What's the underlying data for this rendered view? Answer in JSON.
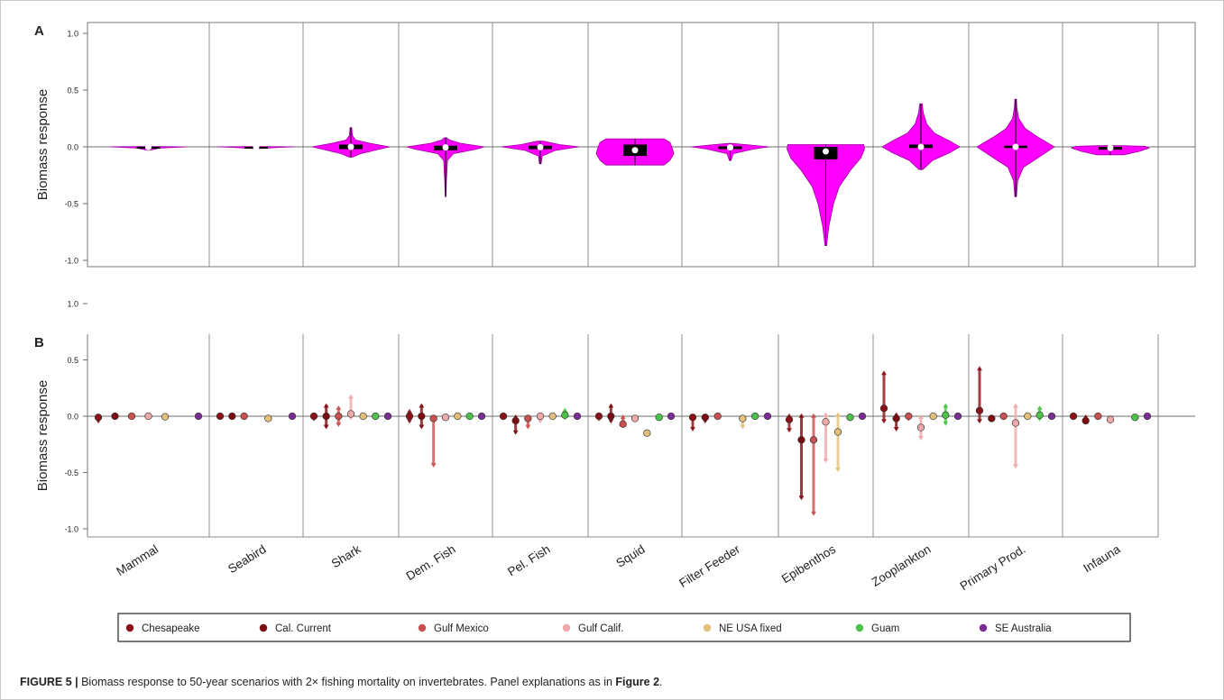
{
  "caption": {
    "label": "FIGURE 5 |",
    "text": " Biomass response to 50-year scenarios with 2× fishing mortality on invertebrates. Panel explanations as in ",
    "ref": "Figure 2",
    "end": "."
  },
  "colors": {
    "violin": "#ff00ff",
    "violin_edge": "#a100a1",
    "box": "#000000",
    "median": "#ffffff",
    "Chesapeake": "#8b1116",
    "Cal. Current": "#7a0b10",
    "Gulf Mexico": "#c8504e",
    "Gulf Calif.": "#f0a9a9",
    "NE USA fixed": "#e2c07a",
    "Guam": "#4cc24a",
    "SE Australia": "#7b2b96"
  },
  "chart_data": [
    {
      "type": "violin",
      "panel_label": "A",
      "title": "",
      "xlabel": "",
      "ylabel": "Biomass response",
      "ylim": [
        -1.05,
        1.05
      ],
      "yticks": [
        "1.0",
        "0.5",
        "0.0",
        "-0.5",
        "-1.0"
      ],
      "ytick_values": [
        1.0,
        0.5,
        0.0,
        -0.5,
        -1.0
      ],
      "grid": "vertical separators between groups; horizontal line at 0",
      "categories": [
        "Mammal",
        "Seabird",
        "Shark",
        "Dem. Fish",
        "Pel. Fish",
        "Squid",
        "Filter Feeder",
        "Epibenthos",
        "Zooplankton",
        "Primary Prod.",
        "Infauna"
      ],
      "violins": [
        {
          "min": -0.03,
          "max": 0.0,
          "q1": -0.005,
          "q3": 0.0,
          "median": -0.003,
          "mean": -0.003,
          "shape": [
            [
              -0.03,
              0.02
            ],
            [
              -0.01,
              0.3
            ],
            [
              0,
              1
            ],
            [
              0.003,
              0.3
            ]
          ]
        },
        {
          "min": -0.015,
          "max": 0.0,
          "q1": -0.004,
          "q3": 0.0,
          "median": -0.002,
          "mean": -0.002,
          "shape": [
            [
              -0.015,
              0.1
            ],
            [
              -0.005,
              0.6
            ],
            [
              0,
              1
            ],
            [
              0.002,
              0.3
            ]
          ]
        },
        {
          "min": -0.09,
          "max": 0.17,
          "q1": -0.02,
          "q3": 0.02,
          "median": 0.0,
          "mean": 0.0,
          "shape": [
            [
              -0.09,
              0.05
            ],
            [
              -0.06,
              0.25
            ],
            [
              -0.02,
              0.75
            ],
            [
              0,
              1
            ],
            [
              0.03,
              0.5
            ],
            [
              0.06,
              0.12
            ],
            [
              0.1,
              0.04
            ],
            [
              0.17,
              0.02
            ]
          ]
        },
        {
          "min": -0.44,
          "max": 0.08,
          "q1": -0.03,
          "q3": 0.01,
          "median": -0.005,
          "mean": -0.005,
          "shape": [
            [
              -0.44,
              0.01
            ],
            [
              -0.3,
              0.02
            ],
            [
              -0.12,
              0.05
            ],
            [
              -0.06,
              0.2
            ],
            [
              -0.02,
              0.8
            ],
            [
              0,
              1
            ],
            [
              0.03,
              0.4
            ],
            [
              0.06,
              0.1
            ],
            [
              0.08,
              0.03
            ]
          ]
        },
        {
          "min": -0.15,
          "max": 0.05,
          "q1": -0.02,
          "q3": 0.01,
          "median": -0.003,
          "mean": -0.003,
          "shape": [
            [
              -0.15,
              0.02
            ],
            [
              -0.08,
              0.05
            ],
            [
              -0.03,
              0.4
            ],
            [
              0,
              1
            ],
            [
              0.02,
              0.5
            ],
            [
              0.05,
              0.08
            ]
          ]
        },
        {
          "min": -0.16,
          "max": 0.07,
          "q1": -0.08,
          "q3": 0.02,
          "median": -0.03,
          "mean": -0.02,
          "shape": [
            [
              -0.16,
              0.75
            ],
            [
              -0.12,
              0.9
            ],
            [
              -0.06,
              1
            ],
            [
              0,
              0.95
            ],
            [
              0.04,
              0.9
            ],
            [
              0.07,
              0.75
            ]
          ]
        },
        {
          "min": -0.12,
          "max": 0.03,
          "q1": -0.02,
          "q3": 0.005,
          "median": -0.005,
          "mean": -0.005,
          "shape": [
            [
              -0.12,
              0.02
            ],
            [
              -0.06,
              0.08
            ],
            [
              -0.02,
              0.6
            ],
            [
              0,
              1
            ],
            [
              0.02,
              0.4
            ],
            [
              0.03,
              0.05
            ]
          ]
        },
        {
          "min": -0.87,
          "max": 0.02,
          "q1": -0.11,
          "q3": 0.0,
          "median": -0.04,
          "mean": -0.03,
          "shape": [
            [
              -0.87,
              0.02
            ],
            [
              -0.7,
              0.08
            ],
            [
              -0.5,
              0.2
            ],
            [
              -0.35,
              0.35
            ],
            [
              -0.2,
              0.65
            ],
            [
              -0.1,
              0.9
            ],
            [
              -0.02,
              1
            ],
            [
              0.02,
              0.98
            ]
          ]
        },
        {
          "min": -0.2,
          "max": 0.38,
          "q1": -0.01,
          "q3": 0.02,
          "median": 0.0,
          "mean": 0.0,
          "shape": [
            [
              -0.2,
              0.05
            ],
            [
              -0.12,
              0.3
            ],
            [
              -0.05,
              0.75
            ],
            [
              0,
              1
            ],
            [
              0.05,
              0.75
            ],
            [
              0.12,
              0.35
            ],
            [
              0.2,
              0.15
            ],
            [
              0.3,
              0.06
            ],
            [
              0.38,
              0.03
            ]
          ]
        },
        {
          "min": -0.44,
          "max": 0.42,
          "q1": -0.01,
          "q3": 0.01,
          "median": 0.0,
          "mean": 0.0,
          "shape": [
            [
              -0.44,
              0.02
            ],
            [
              -0.3,
              0.05
            ],
            [
              -0.18,
              0.2
            ],
            [
              -0.08,
              0.65
            ],
            [
              0,
              1
            ],
            [
              0.08,
              0.6
            ],
            [
              0.16,
              0.25
            ],
            [
              0.25,
              0.08
            ],
            [
              0.35,
              0.03
            ],
            [
              0.42,
              0.02
            ]
          ]
        },
        {
          "min": -0.07,
          "max": 0.01,
          "q1": -0.025,
          "q3": 0.0,
          "median": -0.01,
          "mean": -0.01,
          "shape": [
            [
              -0.07,
              0.35
            ],
            [
              -0.04,
              0.75
            ],
            [
              -0.01,
              1
            ],
            [
              0.005,
              0.9
            ],
            [
              0.01,
              0.3
            ]
          ]
        }
      ]
    },
    {
      "type": "pointrange",
      "panel_label": "B",
      "title": "",
      "ylabel": "Biomass response",
      "ylim": [
        -1.05,
        1.05
      ],
      "yticks": [
        "1.0",
        "0.5",
        "0.0",
        "-0.5",
        "-1.0"
      ],
      "ytick_values": [
        1.0,
        0.5,
        0.0,
        -0.5,
        -1.0
      ],
      "categories": [
        "Mammal",
        "Seabird",
        "Shark",
        "Dem. Fish",
        "Pel. Fish",
        "Squid",
        "Filter Feeder",
        "Epibenthos",
        "Zooplankton",
        "Primary Prod.",
        "Infauna"
      ],
      "models": [
        "Chesapeake",
        "Cal. Current",
        "Gulf Mexico",
        "Gulf Calif.",
        "NE USA fixed",
        "Guam",
        "SE Australia"
      ],
      "legend": {
        "position": "bottom",
        "entries": [
          "Chesapeake",
          "Cal. Current",
          "Gulf Mexico",
          "Gulf Calif.",
          "NE USA fixed",
          "Guam",
          "SE Australia"
        ]
      },
      "points": [
        [
          [
            -0.01,
            -0.05,
            0.01
          ],
          [
            0.0,
            -0.01,
            0.01
          ],
          [
            0.0,
            -0.01,
            0.01
          ],
          [
            0.0,
            -0.01,
            0.01
          ],
          [
            -0.005,
            -0.01,
            0.0
          ],
          null,
          [
            0.0,
            0.0,
            0.0
          ]
        ],
        [
          [
            0.0,
            0.0,
            0.0
          ],
          [
            0.0,
            -0.01,
            0.0
          ],
          [
            0.0,
            -0.01,
            0.0
          ],
          null,
          [
            -0.02,
            -0.03,
            0.0
          ],
          null,
          [
            0.0,
            0.0,
            0.0
          ]
        ],
        [
          [
            0.0,
            -0.03,
            0.02
          ],
          [
            0.0,
            -0.1,
            0.1
          ],
          [
            0.0,
            -0.08,
            0.08
          ],
          [
            0.02,
            -0.02,
            0.18
          ],
          [
            0.0,
            -0.01,
            0.02
          ],
          [
            0.0,
            -0.01,
            0.01
          ],
          [
            0.0,
            0.0,
            0.0
          ]
        ],
        [
          [
            0.0,
            -0.05,
            0.05
          ],
          [
            0.0,
            -0.1,
            0.1
          ],
          [
            -0.02,
            -0.44,
            0.0
          ],
          [
            -0.01,
            -0.02,
            0.0
          ],
          [
            0.0,
            -0.01,
            0.01
          ],
          [
            0.0,
            -0.01,
            0.01
          ],
          [
            0.0,
            0.0,
            0.0
          ]
        ],
        [
          [
            0.0,
            -0.02,
            0.01
          ],
          [
            -0.04,
            -0.15,
            0.0
          ],
          [
            -0.02,
            -0.1,
            0.0
          ],
          [
            0.0,
            -0.05,
            0.02
          ],
          [
            0.0,
            -0.01,
            0.01
          ],
          [
            0.01,
            -0.02,
            0.06
          ],
          [
            0.0,
            0.0,
            0.0
          ]
        ],
        [
          [
            0.0,
            -0.03,
            0.02
          ],
          [
            0.0,
            -0.05,
            0.1
          ],
          [
            -0.07,
            -0.09,
            0.0
          ],
          [
            -0.02,
            -0.04,
            0.0
          ],
          [
            -0.15,
            -0.16,
            -0.13
          ],
          [
            -0.01,
            -0.02,
            0.0
          ],
          [
            0.0,
            0.0,
            0.0
          ]
        ],
        [
          [
            -0.01,
            -0.12,
            0.0
          ],
          [
            -0.01,
            -0.05,
            0.0
          ],
          [
            0.0,
            -0.02,
            0.01
          ],
          null,
          [
            -0.02,
            -0.1,
            0.0
          ],
          [
            0.0,
            -0.01,
            0.02
          ],
          [
            0.0,
            0.0,
            0.0
          ]
        ],
        [
          [
            -0.03,
            -0.13,
            0.01
          ],
          [
            -0.21,
            -0.73,
            0.01
          ],
          [
            -0.21,
            -0.87,
            0.01
          ],
          [
            -0.05,
            -0.4,
            0.02
          ],
          [
            -0.14,
            -0.48,
            0.02
          ],
          [
            -0.01,
            -0.03,
            0.01
          ],
          [
            0.0,
            0.0,
            0.0
          ]
        ],
        [
          [
            0.07,
            -0.05,
            0.39
          ],
          [
            -0.02,
            -0.12,
            0.02
          ],
          [
            0.0,
            -0.03,
            0.02
          ],
          [
            -0.1,
            -0.2,
            0.0
          ],
          [
            0.0,
            -0.01,
            0.02
          ],
          [
            0.01,
            -0.07,
            0.1
          ],
          [
            0.0,
            0.0,
            0.0
          ]
        ],
        [
          [
            0.05,
            -0.05,
            0.43
          ],
          [
            -0.02,
            -0.03,
            0.0
          ],
          [
            0.0,
            -0.02,
            0.01
          ],
          [
            -0.06,
            -0.45,
            0.1
          ],
          [
            0.0,
            -0.01,
            0.02
          ],
          [
            0.01,
            -0.03,
            0.08
          ],
          [
            0.0,
            0.0,
            0.0
          ]
        ],
        [
          [
            0.0,
            -0.02,
            0.02
          ],
          [
            -0.04,
            -0.05,
            0.0
          ],
          [
            0.0,
            -0.01,
            0.01
          ],
          [
            -0.03,
            -0.06,
            0.0
          ],
          null,
          [
            -0.01,
            -0.03,
            0.0
          ],
          [
            0.0,
            0.0,
            0.0
          ]
        ]
      ]
    }
  ]
}
